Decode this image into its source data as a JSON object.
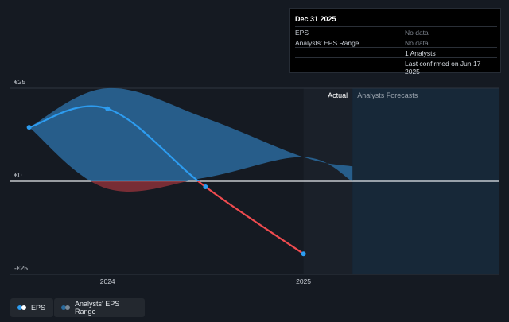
{
  "chart_data": {
    "type": "line",
    "x_axis": {
      "ticks": [
        "2024",
        "2025"
      ],
      "range": [
        2023.5,
        2026.0
      ]
    },
    "y_axis": {
      "ticks": [
        {
          "value": 25,
          "label": "€25"
        },
        {
          "value": 0,
          "label": "€0"
        },
        {
          "value": -25,
          "label": "-€25"
        }
      ],
      "range": [
        -27,
        28
      ]
    },
    "regions": {
      "actual_label": "Actual",
      "forecast_label": "Analysts Forecasts",
      "actual_start": 2025.0,
      "forecast_start": 2025.25
    },
    "series": [
      {
        "name": "EPS",
        "points": [
          {
            "x": 2023.6,
            "y": 14.5
          },
          {
            "x": 2024.0,
            "y": 19.5
          },
          {
            "x": 2024.5,
            "y": -1.5
          },
          {
            "x": 2025.0,
            "y": -19.5
          }
        ],
        "positive_color": "#2d9cf0",
        "negative_color": "#ef4b4f"
      },
      {
        "name": "Analysts' EPS Range",
        "upper": [
          {
            "x": 2023.6,
            "y": 14.5
          },
          {
            "x": 2024.0,
            "y": 25
          },
          {
            "x": 2024.5,
            "y": 17
          },
          {
            "x": 2025.0,
            "y": 6.5
          },
          {
            "x": 2025.25,
            "y": 4
          }
        ],
        "lower": [
          {
            "x": 2023.6,
            "y": 14.5
          },
          {
            "x": 2024.0,
            "y": -2
          },
          {
            "x": 2024.5,
            "y": 1
          },
          {
            "x": 2025.0,
            "y": 6.5
          },
          {
            "x": 2025.25,
            "y": 0
          }
        ],
        "positive_color": "#2a6a9c",
        "negative_color": "#8a3138"
      }
    ],
    "gridlines": true
  },
  "tooltip": {
    "title": "Dec 31 2025",
    "rows": [
      {
        "label": "EPS",
        "value": "No data"
      },
      {
        "label": "Analysts' EPS Range",
        "value": "No data"
      },
      {
        "label": "",
        "value": "1 Analysts"
      },
      {
        "label": "",
        "value": "Last confirmed on Jun 17 2025"
      }
    ]
  },
  "legend": {
    "eps_label": "EPS",
    "range_label": "Analysts' EPS Range",
    "eps_colors": [
      "#2d9cf0",
      "#ffffff"
    ],
    "range_colors": [
      "#2a6a9c",
      "#7c8894"
    ]
  }
}
